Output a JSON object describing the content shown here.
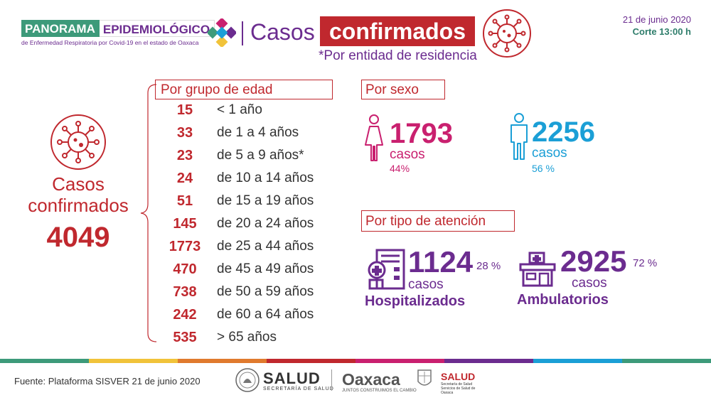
{
  "header": {
    "brand_part1": "PANORAMA",
    "brand_part2": "EPIDEMIOLÓGICO",
    "brand_sub": "de Enfermedad Respiratoria por Covid-19 en el estado de Oaxaca",
    "title_part1": "Casos",
    "title_part2": "confirmados",
    "subtitle": "*Por entidad de residencia",
    "date": "21 de junio 2020",
    "cutoff": "Corte 13:00 h"
  },
  "total": {
    "label_line1": "Casos",
    "label_line2": "confirmados",
    "value": "4049"
  },
  "age_groups": {
    "heading": "Por grupo de edad",
    "rows": [
      {
        "count": "15",
        "label": "< 1 año"
      },
      {
        "count": "33",
        "label": "de 1 a 4 años"
      },
      {
        "count": "23",
        "label": "de 5 a 9 años*"
      },
      {
        "count": "24",
        "label": "de 10 a 14 años"
      },
      {
        "count": "51",
        "label": "de 15 a 19 años"
      },
      {
        "count": "145",
        "label": "de 20 a 24 años"
      },
      {
        "count": "1773",
        "label": "de 25 a 44 años"
      },
      {
        "count": "470",
        "label": "de 45 a 49 años"
      },
      {
        "count": "738",
        "label": "de 50 a 59 años"
      },
      {
        "count": "242",
        "label": "de 60 a 64 años"
      },
      {
        "count": "535",
        "label": "> 65 años"
      }
    ]
  },
  "sex": {
    "heading": "Por sexo",
    "female": {
      "value": "1793",
      "unit": "casos",
      "pct": "44%"
    },
    "male": {
      "value": "2256",
      "unit": "casos",
      "pct": "56 %"
    }
  },
  "attention": {
    "heading": "Por tipo de atención",
    "hospitalized": {
      "value": "1124",
      "pct": "28 %",
      "unit": "casos",
      "label": "Hospitalizados"
    },
    "ambulatory": {
      "value": "2925",
      "pct": "72 %",
      "unit": "casos",
      "label": "Ambulatorios"
    }
  },
  "footer": {
    "source": "Fuente: Plataforma SISVER 21 de junio 2020",
    "salud_federal": "SALUD",
    "salud_federal_sub": "SECRETARÍA DE SALUD",
    "oaxaca": "Oaxaca",
    "oaxaca_sub": "JUNTOS CONSTRUIMOS EL CAMBIO",
    "salud_state": "SALUD",
    "salud_state_sub": "Secretaría de Salud Servicios de Salud de Oaxaca"
  },
  "colors": {
    "red": "#c0282e",
    "purple": "#6b2c8f",
    "magenta": "#c9206f",
    "blue": "#1b9fd6",
    "green": "#3d9a7a",
    "stripes": [
      "#3d9a7a",
      "#f1c33a",
      "#e07a2e",
      "#c0282e",
      "#c9206f",
      "#6b2c8f",
      "#1b9fd6",
      "#3d9a7a"
    ]
  },
  "icons": [
    "virus-icon",
    "female-icon",
    "male-icon",
    "hospital-icon",
    "clinic-icon"
  ]
}
